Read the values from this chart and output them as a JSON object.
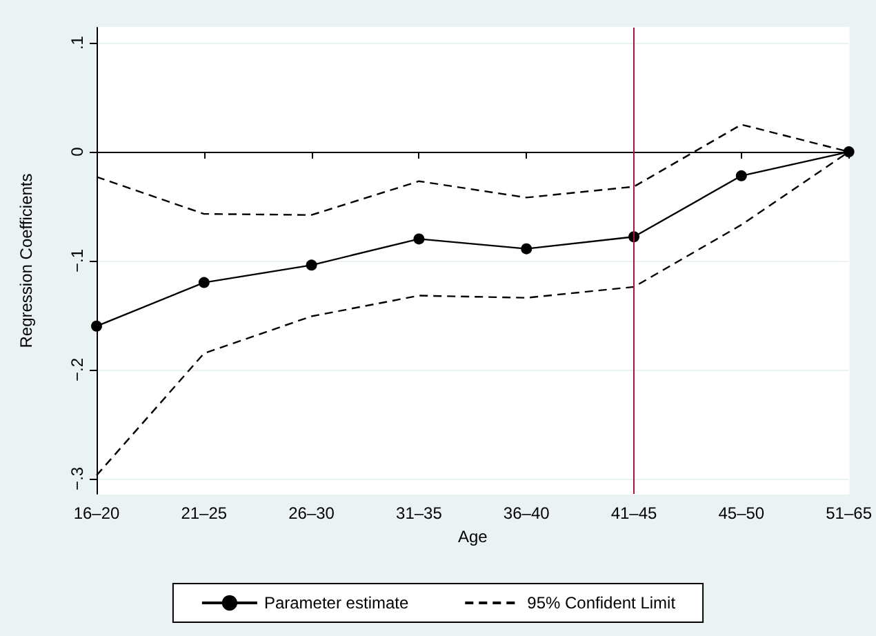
{
  "chart_data": {
    "type": "line",
    "xlabel": "Age",
    "ylabel": "Regression Coefficients",
    "categories": [
      "16–20",
      "21–25",
      "26–30",
      "31–35",
      "36–40",
      "41–45",
      "45–50",
      "51–65"
    ],
    "series": [
      {
        "name": "Parameter estimate",
        "color": "#000000",
        "marker": "circle",
        "line_style": "solid",
        "values": [
          -0.16,
          -0.12,
          -0.104,
          -0.08,
          -0.089,
          -0.078,
          -0.022,
          0
        ]
      },
      {
        "name": "95% Confident Limit",
        "color": "#000000",
        "marker": "none",
        "line_style": "dashed",
        "values": [
          -0.023,
          -0.057,
          -0.058,
          -0.027,
          -0.042,
          -0.032,
          0.025,
          0
        ]
      },
      {
        "color": "#000000",
        "marker": "none",
        "line_style": "dashed",
        "values": [
          -0.297,
          -0.185,
          -0.151,
          -0.132,
          -0.134,
          -0.124,
          -0.067,
          0
        ]
      }
    ],
    "ylim": [
      -0.314,
      0.114
    ],
    "yticks": [
      {
        "value": -0.3,
        "label": "−.3"
      },
      {
        "value": -0.2,
        "label": "−.2"
      },
      {
        "value": -0.1,
        "label": "−.1"
      },
      {
        "value": 0,
        "label": "0"
      },
      {
        "value": 0.1,
        "label": ".1"
      }
    ],
    "grid": "y",
    "legend": "bottom",
    "ref_lines": [
      {
        "axis": "y",
        "value": 0,
        "color": "#000000"
      },
      {
        "axis": "x",
        "value": "41–45",
        "color": "#b0103a"
      }
    ]
  }
}
